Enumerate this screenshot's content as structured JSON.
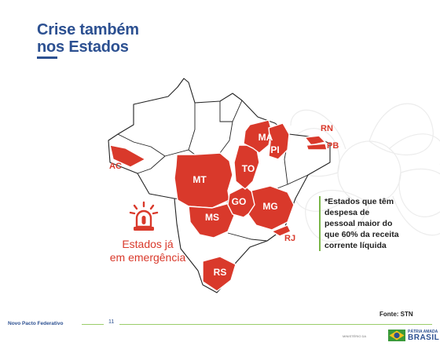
{
  "slide": {
    "title_line1": "Crise também",
    "title_line2": "nos Estados",
    "emergency_line1": "Estados já",
    "emergency_line2": "em emergência",
    "note_lines": [
      "*Estados que têm",
      "despesa de",
      "pessoal maior do",
      "que 60% da receita",
      "corrente líquida"
    ],
    "source": "Fonte: STN",
    "colors": {
      "accent_red": "#d9392b",
      "title_blue": "#2c5091",
      "note_green": "#7ab648"
    }
  },
  "map": {
    "highlighted_states": [
      "MT",
      "MS",
      "GO",
      "MG",
      "TO",
      "MA",
      "PI",
      "RS"
    ],
    "external_labels": {
      "ac": "AC",
      "rn": "RN",
      "pb": "PB",
      "rj": "RJ"
    }
  },
  "footer": {
    "program": "Novo Pacto Federativo",
    "page_number": "11",
    "ministry": "MINISTÉRIO DA",
    "logo_top": "PÁTRIA AMADA",
    "logo_main": "BRASIL"
  },
  "icons": {
    "alarm": "siren-alarm-icon",
    "logo": "flag-icon"
  }
}
